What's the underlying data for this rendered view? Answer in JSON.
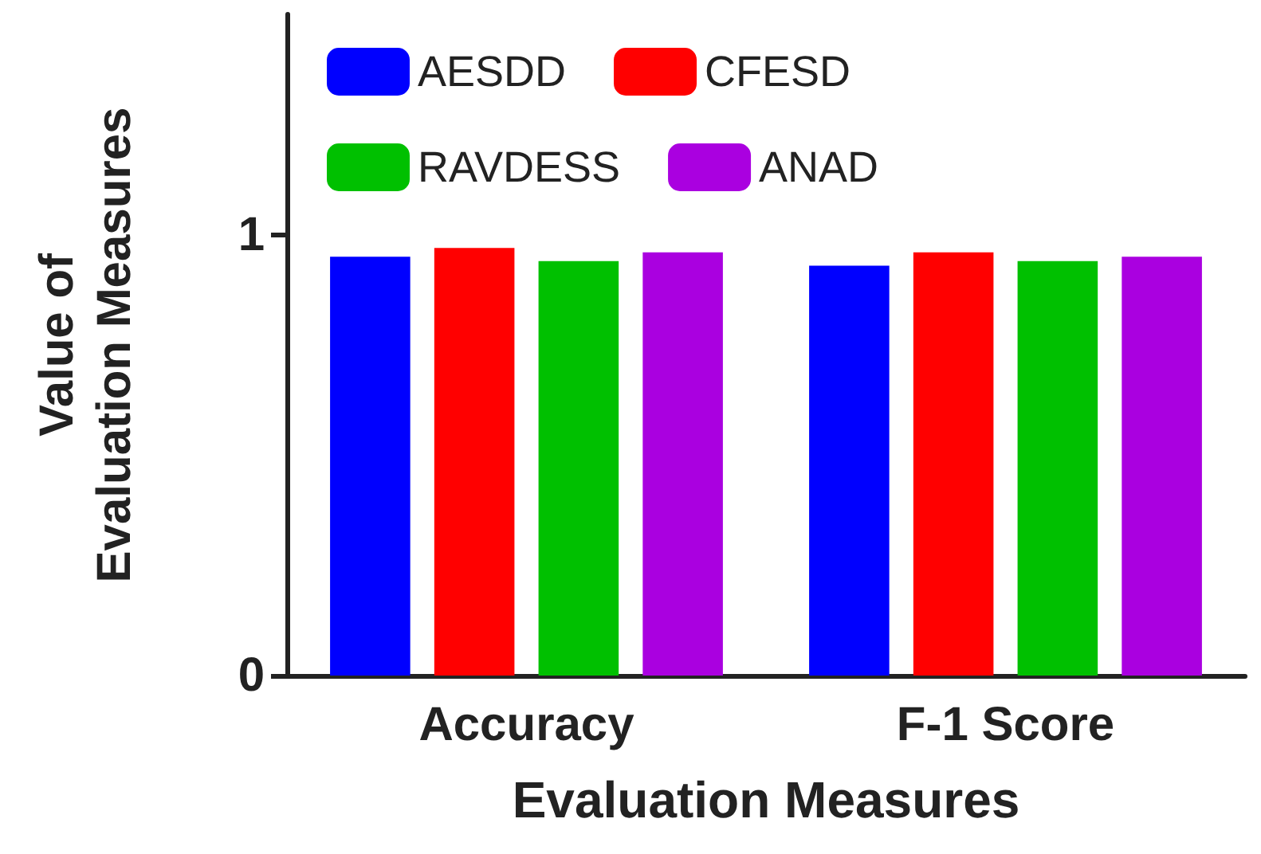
{
  "chart_data": {
    "type": "bar",
    "xlabel": "Evaluation Measures",
    "ylabel": "Value of\nEvaluation Measures",
    "categories": [
      "Accuracy",
      "F-1 Score"
    ],
    "series": [
      {
        "name": "AESDD",
        "color": "#0000ff",
        "values": [
          0.95,
          0.93
        ]
      },
      {
        "name": "CFESD",
        "color": "#ff0000",
        "values": [
          0.97,
          0.96
        ]
      },
      {
        "name": "RAVDESS",
        "color": "#00c000",
        "values": [
          0.94,
          0.94
        ]
      },
      {
        "name": "ANAD",
        "color": "#aa00e0",
        "values": [
          0.96,
          0.95
        ]
      }
    ],
    "ylim": [
      0,
      1.5
    ],
    "yticks": [
      0,
      1
    ],
    "grid": false,
    "legend": "top left"
  }
}
